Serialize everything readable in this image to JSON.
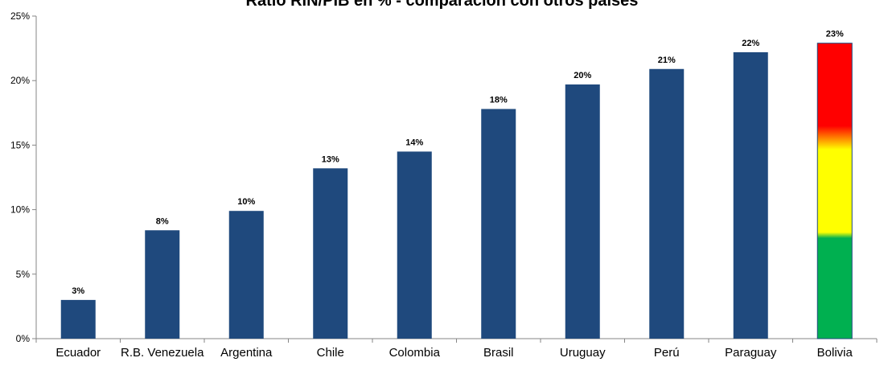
{
  "chart_data": {
    "type": "bar",
    "title": "Ratio RIN/PIB en % - comparación con otros países",
    "xlabel": "",
    "ylabel": "",
    "ylim": [
      0,
      25
    ],
    "yticks": [
      "0%",
      "5%",
      "10%",
      "15%",
      "20%",
      "25%"
    ],
    "grid": false,
    "categories": [
      "Ecuador",
      "R.B. Venezuela",
      "Argentina",
      "Chile",
      "Colombia",
      "Brasil",
      "Uruguay",
      "Perú",
      "Paraguay",
      "Bolivia"
    ],
    "values": [
      3.0,
      8.4,
      9.9,
      13.2,
      14.5,
      17.8,
      19.7,
      20.9,
      22.2,
      22.9
    ],
    "value_labels": [
      "3%",
      "8%",
      "10%",
      "13%",
      "14%",
      "18%",
      "20%",
      "21%",
      "22%",
      "23%"
    ],
    "colors": {
      "bar": "#1F497D",
      "highlight_top": "#FF0000",
      "highlight_mid": "#FFFF00",
      "highlight_bottom": "#00B050"
    },
    "highlight_category": "Bolivia"
  }
}
